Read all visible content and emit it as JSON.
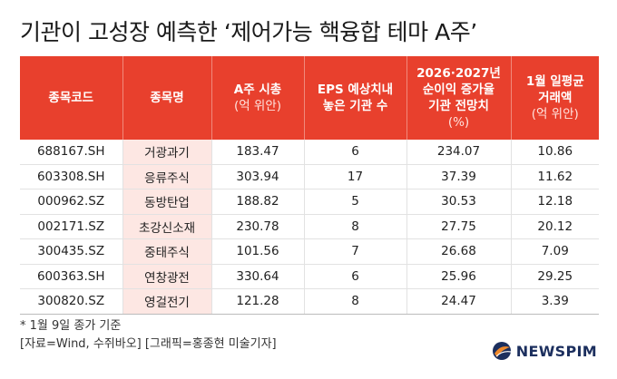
{
  "title": "기관이 고성장 예측한 ‘제어가능 핵융합 테마 A주’",
  "table": {
    "headers": [
      {
        "lines": [
          "종목코드"
        ],
        "sub": ""
      },
      {
        "lines": [
          "종목명"
        ],
        "sub": ""
      },
      {
        "lines": [
          "A주 시총"
        ],
        "sub": "(억 위안)"
      },
      {
        "lines": [
          "EPS 예상치내",
          "놓은 기관 수"
        ],
        "sub": ""
      },
      {
        "lines": [
          "2026·2027년",
          "순이익 증가율",
          "기관 전망치"
        ],
        "sub": "(%)"
      },
      {
        "lines": [
          "1월 일평균",
          "거래액"
        ],
        "sub": "(억 위안)"
      }
    ],
    "rows": [
      {
        "code": "688167.SH",
        "name": "거광과기",
        "mcap": "183.47",
        "eps_count": "6",
        "growth": "234.07",
        "volume": "10.86"
      },
      {
        "code": "603308.SH",
        "name": "응류주식",
        "mcap": "303.94",
        "eps_count": "17",
        "growth": "37.39",
        "volume": "11.62"
      },
      {
        "code": "000962.SZ",
        "name": "동방탄업",
        "mcap": "188.82",
        "eps_count": "5",
        "growth": "30.53",
        "volume": "12.18"
      },
      {
        "code": "002171.SZ",
        "name": "초강신소재",
        "mcap": "230.78",
        "eps_count": "8",
        "growth": "27.75",
        "volume": "20.12"
      },
      {
        "code": "300435.SZ",
        "name": "중태주식",
        "mcap": "101.56",
        "eps_count": "7",
        "growth": "26.68",
        "volume": "7.09"
      },
      {
        "code": "600363.SH",
        "name": "연창광전",
        "mcap": "330.64",
        "eps_count": "6",
        "growth": "25.96",
        "volume": "29.25"
      },
      {
        "code": "300820.SZ",
        "name": "영걸전기",
        "mcap": "121.28",
        "eps_count": "8",
        "growth": "24.47",
        "volume": "3.39"
      }
    ]
  },
  "footnote": {
    "line1": "* 1월 9일 종가 기준",
    "line2": "[자료=Wind, 수쥐바오] [그래픽=홍종현 미술기자]"
  },
  "logo": {
    "text": "NEWSPIM",
    "icon": "newspim-globe-icon",
    "colors": {
      "blue": "#1c2f5e",
      "orange": "#f0892b"
    }
  },
  "colors": {
    "header_bg": "#e8402d",
    "name_cell_bg": "#fde7e3"
  }
}
